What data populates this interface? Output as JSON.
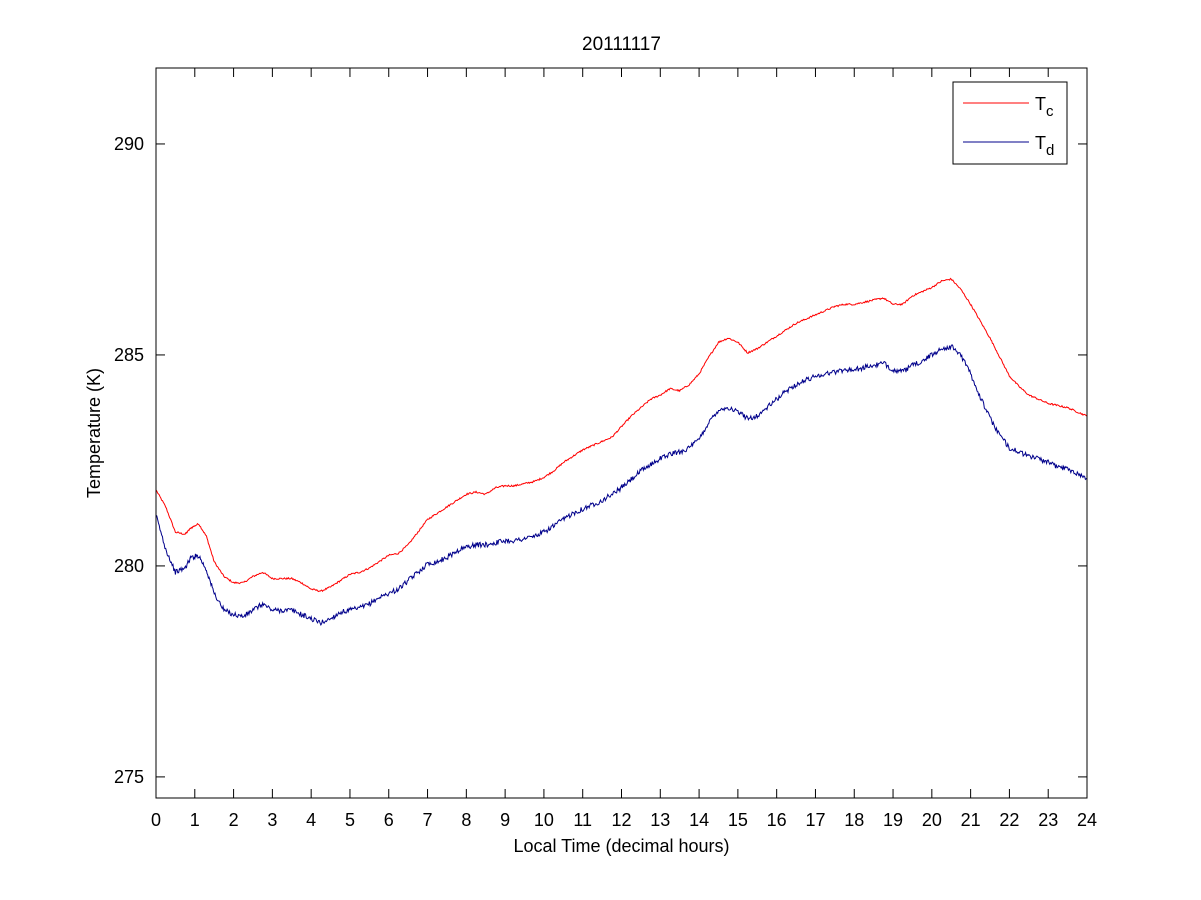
{
  "chart_data": {
    "type": "line",
    "title": "20111117",
    "xlabel": "Local Time (decimal hours)",
    "ylabel": "Temperature (K)",
    "xlim": [
      0,
      24
    ],
    "ylim": [
      274.5,
      291.8
    ],
    "xticks": [
      0,
      1,
      2,
      3,
      4,
      5,
      6,
      7,
      8,
      9,
      10,
      11,
      12,
      13,
      14,
      15,
      16,
      17,
      18,
      19,
      20,
      21,
      22,
      23,
      24
    ],
    "xtick_labels": [
      "0",
      "1",
      "2",
      "3",
      "4",
      "5",
      "6",
      "7",
      "8",
      "9",
      "10",
      "11",
      "12",
      "13",
      "14",
      "15",
      "16",
      "17",
      "18",
      "19",
      "20",
      "21",
      "22",
      "23",
      "24"
    ],
    "yticks": [
      275,
      280,
      285,
      290
    ],
    "ytick_labels": [
      "275",
      "280",
      "285",
      "290"
    ],
    "grid": false,
    "legend": {
      "placement": "top-right",
      "entries": [
        {
          "base": "T",
          "sub": "c",
          "color": "#ff0000"
        },
        {
          "base": "T",
          "sub": "d",
          "color": "#00008b"
        }
      ]
    },
    "series": [
      {
        "color": "#ff0000",
        "x": [
          0,
          0.25,
          0.5,
          0.75,
          0.9,
          1.1,
          1.3,
          1.5,
          1.75,
          2.0,
          2.25,
          2.5,
          2.75,
          3.0,
          3.25,
          3.5,
          3.75,
          4.0,
          4.25,
          4.5,
          4.75,
          5.0,
          5.25,
          5.5,
          5.75,
          6.0,
          6.25,
          6.5,
          6.75,
          7.0,
          7.25,
          7.5,
          7.75,
          8.0,
          8.25,
          8.5,
          8.75,
          9.0,
          9.25,
          9.5,
          9.75,
          10.0,
          10.25,
          10.5,
          10.75,
          11.0,
          11.25,
          11.5,
          11.75,
          12.0,
          12.25,
          12.5,
          12.75,
          13.0,
          13.25,
          13.5,
          13.75,
          14.0,
          14.25,
          14.5,
          14.75,
          15.0,
          15.25,
          15.5,
          15.75,
          16.0,
          16.25,
          16.5,
          16.75,
          17.0,
          17.25,
          17.5,
          17.75,
          18.0,
          18.25,
          18.5,
          18.75,
          19.0,
          19.25,
          19.5,
          19.75,
          20.0,
          20.25,
          20.5,
          20.75,
          21.0,
          21.25,
          21.5,
          21.75,
          22.0,
          22.25,
          22.5,
          22.75,
          23.0,
          23.25,
          23.5,
          23.75,
          24.0
        ],
        "y": [
          281.8,
          281.4,
          280.8,
          280.75,
          280.9,
          281.0,
          280.7,
          280.1,
          279.75,
          279.6,
          279.6,
          279.75,
          279.85,
          279.7,
          279.7,
          279.7,
          279.6,
          279.45,
          279.4,
          279.5,
          279.65,
          279.8,
          279.85,
          279.95,
          280.1,
          280.25,
          280.3,
          280.5,
          280.8,
          281.1,
          281.25,
          281.4,
          281.55,
          281.7,
          281.75,
          281.7,
          281.85,
          281.9,
          281.9,
          281.95,
          282.0,
          282.1,
          282.25,
          282.45,
          282.6,
          282.75,
          282.85,
          282.95,
          283.05,
          283.3,
          283.55,
          283.75,
          283.95,
          284.05,
          284.2,
          284.15,
          284.3,
          284.55,
          284.95,
          285.3,
          285.4,
          285.3,
          285.05,
          285.15,
          285.3,
          285.45,
          285.6,
          285.75,
          285.85,
          285.95,
          286.05,
          286.15,
          286.2,
          286.2,
          286.25,
          286.3,
          286.35,
          286.2,
          286.2,
          286.4,
          286.5,
          286.6,
          286.75,
          286.8,
          286.55,
          286.2,
          285.8,
          285.4,
          284.95,
          284.5,
          284.25,
          284.05,
          283.95,
          283.85,
          283.8,
          283.75,
          283.65,
          283.55
        ]
      },
      {
        "color": "#00008b",
        "x": [
          0,
          0.25,
          0.5,
          0.75,
          0.9,
          1.1,
          1.3,
          1.5,
          1.75,
          2.0,
          2.25,
          2.5,
          2.75,
          3.0,
          3.25,
          3.5,
          3.75,
          4.0,
          4.25,
          4.5,
          4.75,
          5.0,
          5.25,
          5.5,
          5.75,
          6.0,
          6.25,
          6.5,
          6.75,
          7.0,
          7.25,
          7.5,
          7.75,
          8.0,
          8.25,
          8.5,
          8.75,
          9.0,
          9.25,
          9.5,
          9.75,
          10.0,
          10.25,
          10.5,
          10.75,
          11.0,
          11.25,
          11.5,
          11.75,
          12.0,
          12.25,
          12.5,
          12.75,
          13.0,
          13.25,
          13.5,
          13.75,
          14.0,
          14.25,
          14.5,
          14.75,
          15.0,
          15.25,
          15.5,
          15.75,
          16.0,
          16.25,
          16.5,
          16.75,
          17.0,
          17.25,
          17.5,
          17.75,
          18.0,
          18.25,
          18.5,
          18.75,
          19.0,
          19.25,
          19.5,
          19.75,
          20.0,
          20.25,
          20.5,
          20.75,
          21.0,
          21.25,
          21.5,
          21.75,
          22.0,
          22.25,
          22.5,
          22.75,
          23.0,
          23.25,
          23.5,
          23.75,
          24.0
        ],
        "y": [
          281.2,
          280.4,
          279.85,
          279.95,
          280.2,
          280.25,
          279.9,
          279.35,
          278.95,
          278.85,
          278.8,
          278.95,
          279.1,
          278.95,
          278.95,
          278.95,
          278.85,
          278.75,
          278.65,
          278.75,
          278.9,
          278.95,
          279.0,
          279.1,
          279.25,
          279.35,
          279.45,
          279.65,
          279.85,
          280.05,
          280.1,
          280.2,
          280.35,
          280.45,
          280.5,
          280.5,
          280.55,
          280.6,
          280.6,
          280.65,
          280.7,
          280.8,
          280.95,
          281.1,
          281.25,
          281.35,
          281.45,
          281.55,
          281.7,
          281.85,
          282.05,
          282.25,
          282.4,
          282.55,
          282.65,
          282.7,
          282.8,
          283.0,
          283.4,
          283.7,
          283.75,
          283.65,
          283.5,
          283.55,
          283.75,
          283.95,
          284.15,
          284.3,
          284.4,
          284.5,
          284.55,
          284.6,
          284.65,
          284.65,
          284.7,
          284.75,
          284.8,
          284.65,
          284.6,
          284.75,
          284.85,
          285.0,
          285.15,
          285.2,
          285.0,
          284.55,
          284.0,
          283.5,
          283.1,
          282.8,
          282.7,
          282.6,
          282.55,
          282.45,
          282.35,
          282.3,
          282.2,
          282.05
        ]
      }
    ]
  }
}
